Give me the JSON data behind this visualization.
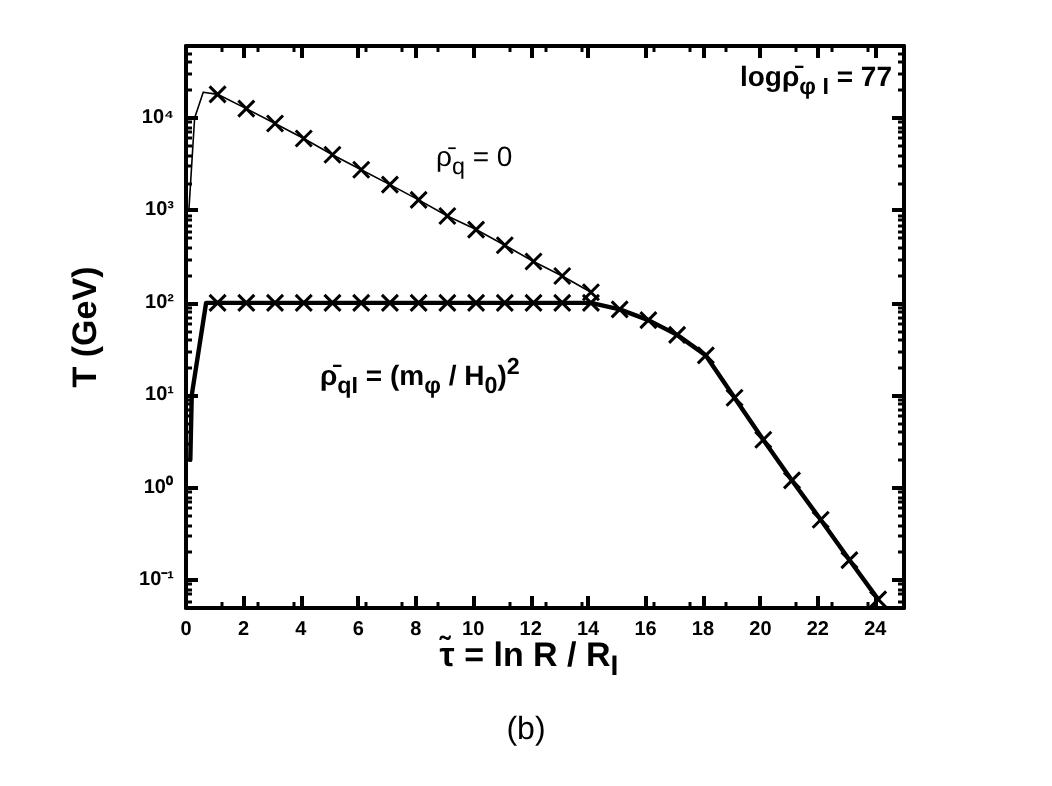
{
  "chart_data": {
    "type": "line",
    "title": "(b)",
    "xlabel": "τ̃ =  ln R / R$_{I}$",
    "ylabel": "T (GeV)",
    "annotations": [
      "logρ̄$_{φ I}$ = 77",
      "ρ̄$_{q}$ = 0",
      "ρ̄$_{qI}$ = (m$_{φ}$ / H$_{0}$)$^{2}$"
    ],
    "series": [
      {
        "color": "#000000",
        "marker": "none",
        "x": [
          0.1,
          0.3,
          0.6,
          1.1
        ],
        "values": [
          1000,
          10000,
          19000,
          18000
        ]
      },
      {
        "color": "#000000",
        "marker": "cross",
        "x": [
          1.1,
          2.1,
          3.1,
          4.1,
          5.1,
          6.1,
          7.1,
          8.1,
          9.1,
          10.1,
          11.1,
          12.1,
          13.1,
          14.1
        ],
        "values": [
          18000,
          12600,
          8700,
          6000,
          4000,
          2750,
          1900,
          1300,
          870,
          620,
          420,
          280,
          195,
          130
        ]
      },
      {
        "color": "#000000",
        "marker": "none",
        "x": [
          0.15,
          0.2,
          0.7,
          1.1
        ],
        "values": [
          2,
          10,
          100,
          100
        ]
      },
      {
        "color": "#000000",
        "marker": "cross",
        "x": [
          1.1,
          2.1,
          3.1,
          4.1,
          5.1,
          6.1,
          7.1,
          8.1,
          9.1,
          10.1,
          11.1,
          12.1,
          13.1,
          14.1,
          15.1,
          16.1,
          17.1,
          18.1,
          19.1,
          20.1,
          21.1,
          22.1,
          23.1,
          24.1
        ],
        "values": [
          100,
          100,
          100,
          100,
          100,
          100,
          100,
          100,
          100,
          100,
          100,
          100,
          100,
          100,
          85,
          65,
          45,
          27,
          9.4,
          3.3,
          1.2,
          0.45,
          0.165,
          0.062
        ]
      }
    ],
    "xlim": [
      0,
      25
    ],
    "xticks": [
      0,
      2,
      4,
      6,
      8,
      10,
      12,
      14,
      16,
      18,
      20,
      22,
      24
    ],
    "ylim": [
      0.05,
      60000
    ],
    "yticks": [
      {
        "value": 0.1,
        "label": "10⁻¹"
      },
      {
        "value": 1,
        "label": "10⁰"
      },
      {
        "value": 10,
        "label": "10¹"
      },
      {
        "value": 100,
        "label": "10²"
      },
      {
        "value": 1000,
        "label": "10³"
      },
      {
        "value": 10000,
        "label": "10⁴"
      }
    ],
    "log": "y",
    "grid": false,
    "line_style": "solid"
  }
}
